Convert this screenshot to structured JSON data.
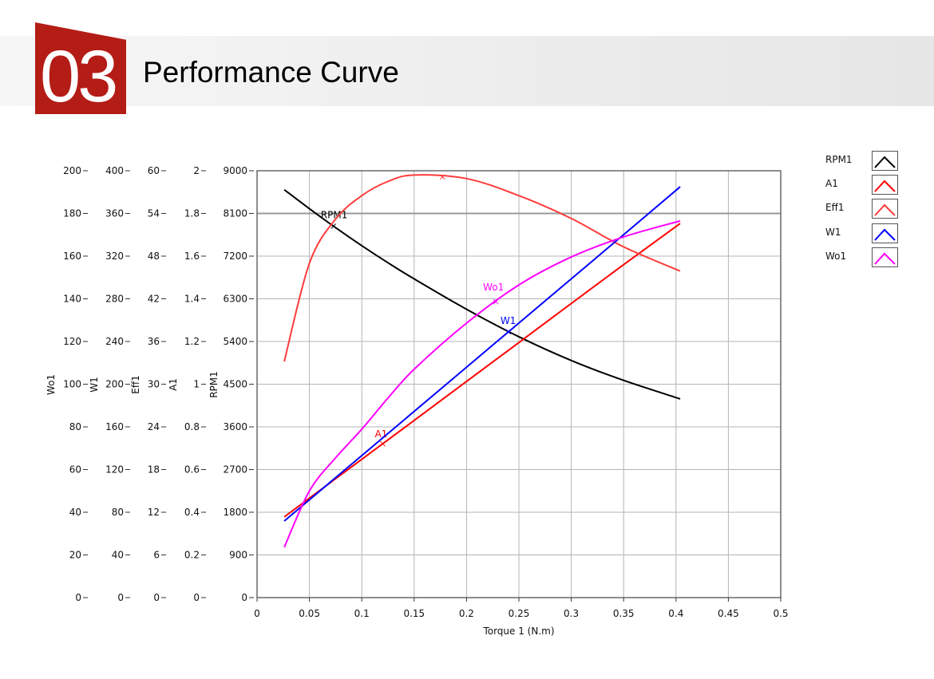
{
  "header": {
    "number": "03",
    "title": "Performance Curve"
  },
  "colors": {
    "brand": "#b41c16",
    "RPM1": "#000000",
    "A1": "#ff0000",
    "Eff1": "#ff3b3b",
    "W1": "#0000ff",
    "Wo1": "#ff00ff"
  },
  "chart_data": {
    "type": "line",
    "xlabel": "Torque 1 (N.m)",
    "xlim": [
      0,
      0.5
    ],
    "xticks": [
      "0",
      "0.05",
      "0.1",
      "0.15",
      "0.2",
      "0.25",
      "0.3",
      "0.35",
      "0.4",
      "0.45",
      "0.5"
    ],
    "grid": true,
    "legend_position": "right",
    "y_axes": [
      {
        "name": "Wo1",
        "range": [
          0,
          200
        ],
        "ticks": [
          "0",
          "20",
          "40",
          "60",
          "80",
          "100",
          "120",
          "140",
          "160",
          "180",
          "200"
        ]
      },
      {
        "name": "W1",
        "range": [
          0,
          400
        ],
        "ticks": [
          "0",
          "40",
          "80",
          "120",
          "160",
          "200",
          "240",
          "280",
          "320",
          "360",
          "400"
        ]
      },
      {
        "name": "Eff1",
        "range": [
          0,
          60
        ],
        "ticks": [
          "0",
          "6",
          "12",
          "18",
          "24",
          "30",
          "36",
          "42",
          "48",
          "54",
          "60"
        ]
      },
      {
        "name": "A1",
        "range": [
          0,
          2
        ],
        "ticks": [
          "0",
          "0.2",
          "0.4",
          "0.6",
          "0.8",
          "1",
          "1.2",
          "1.4",
          "1.6",
          "1.8",
          "2"
        ]
      },
      {
        "name": "RPM1",
        "range": [
          0,
          9000
        ],
        "ticks": [
          "0",
          "900",
          "1800",
          "2700",
          "3600",
          "4500",
          "5400",
          "6300",
          "7200",
          "8100",
          "9000"
        ]
      }
    ],
    "x": [
      0.026,
      0.05,
      0.075,
      0.1,
      0.125,
      0.15,
      0.2,
      0.25,
      0.3,
      0.35,
      0.404
    ],
    "series": [
      {
        "name": "RPM1",
        "axis": 4,
        "values": [
          8600,
          8200,
          7800,
          7420,
          7060,
          6720,
          6080,
          5500,
          5000,
          4580,
          4190
        ],
        "marker_x": 0.073
      },
      {
        "name": "A1",
        "axis": 3,
        "values": [
          0.378,
          0.466,
          0.557,
          0.648,
          0.739,
          0.83,
          1.013,
          1.195,
          1.378,
          1.56,
          1.753
        ],
        "marker_x": 0.12
      },
      {
        "name": "Eff1",
        "axis": 2,
        "values": [
          33.2,
          47.0,
          53.2,
          56.5,
          58.5,
          59.4,
          58.9,
          56.5,
          53.3,
          49.3,
          45.9
        ],
        "marker_x": 0.177,
        "label_shown": false
      },
      {
        "name": "W1",
        "axis": 1,
        "values": [
          71.8,
          91.7,
          112.4,
          133.1,
          153.8,
          174.5,
          215.9,
          257.3,
          298.7,
          340.1,
          385
        ],
        "marker_x": 0.24
      },
      {
        "name": "Wo1",
        "axis": 0,
        "values": [
          23.6,
          50,
          65.5,
          78.9,
          93.5,
          107,
          128.6,
          146.5,
          159.6,
          169,
          176.5
        ],
        "marker_x": 0.228
      }
    ]
  }
}
